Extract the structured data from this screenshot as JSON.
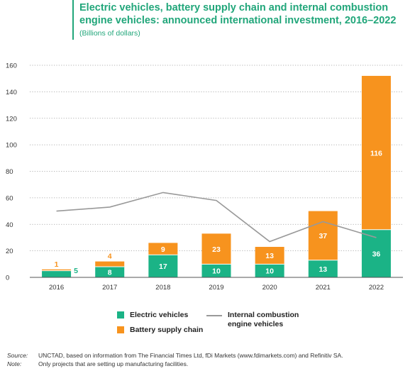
{
  "title": "Electric vehicles, battery supply chain and internal combustion engine vehicles: announced international investment, 2016–2022",
  "subtitle": "(Billions of dollars)",
  "colors": {
    "title": "#21a67a",
    "electric": "#1bb386",
    "battery": "#f7931e",
    "ice_line": "#999999"
  },
  "legend": {
    "electric": "Electric vehicles",
    "battery": "Battery supply chain",
    "ice": "Internal combustion\nengine vehicles"
  },
  "source": {
    "label": "Source:",
    "text": "UNCTAD, based on information from The Financial Times Ltd, fDi Markets (www.fdimarkets.com) and Refinitiv SA."
  },
  "note": {
    "label": "Note:",
    "text": "Only projects that are setting up manufacturing facilities."
  },
  "chart_data": {
    "type": "bar",
    "stacked": true,
    "categories": [
      "2016",
      "2017",
      "2018",
      "2019",
      "2020",
      "2021",
      "2022"
    ],
    "series": [
      {
        "name": "Electric vehicles",
        "values": [
          5,
          8,
          17,
          10,
          10,
          13,
          36
        ],
        "labels": [
          "5",
          "8",
          "17",
          "10",
          "10",
          "13",
          "36"
        ]
      },
      {
        "name": "Battery supply chain",
        "values": [
          1,
          4,
          9,
          23,
          13,
          37,
          116
        ],
        "labels": [
          "1",
          "4",
          "9",
          "23",
          "13",
          "37",
          "116"
        ]
      }
    ],
    "line_series": {
      "name": "Internal combustion engine vehicles",
      "values": [
        50,
        53,
        64,
        58,
        27,
        42,
        30
      ]
    },
    "ylim": [
      0,
      160
    ],
    "yticks": [
      "0",
      "20",
      "40",
      "60",
      "80",
      "100",
      "120",
      "140",
      "160"
    ],
    "grid": true,
    "legend_position": "bottom"
  }
}
